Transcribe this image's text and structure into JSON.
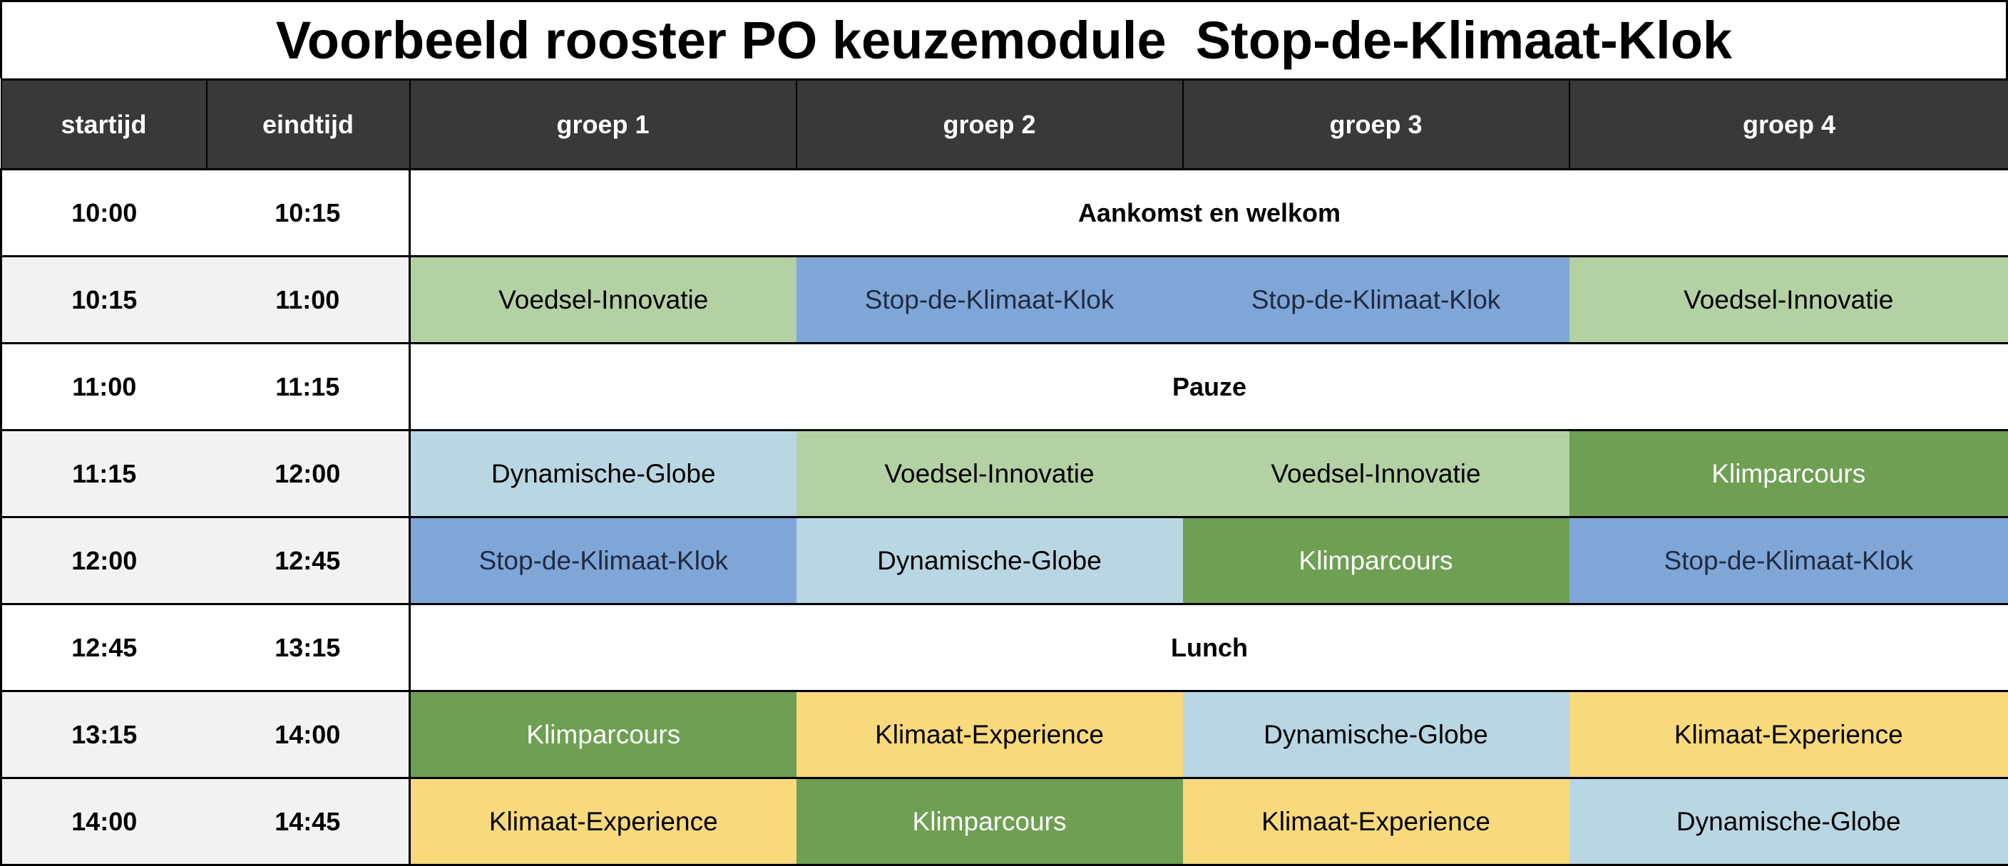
{
  "title": "Voorbeeld rooster PO keuzemodule  Stop-de-Klimaat-Klok",
  "headers": [
    "startijd",
    "eindtijd",
    "groep 1",
    "groep 2",
    "groep 3",
    "groep 4"
  ],
  "activity_colors": {
    "Voedsel-Innovatie": {
      "bg": "#b3d1a3",
      "fg": "#000000"
    },
    "Stop-de-Klimaat-Klok": {
      "bg": "#7fa6d6",
      "fg": "#1f2b44"
    },
    "Dynamische-Globe": {
      "bg": "#b9d6e3",
      "fg": "#000000"
    },
    "Klimparcours": {
      "bg": "#6e9f52",
      "fg": "#ffffff"
    },
    "Klimaat-Experience": {
      "bg": "#f8d97c",
      "fg": "#000000"
    }
  },
  "rows": [
    {
      "start": "10:00",
      "end": "10:15",
      "merged": "Aankomst en welkom",
      "shade": false
    },
    {
      "start": "10:15",
      "end": "11:00",
      "cells": [
        "Voedsel-Innovatie",
        "Stop-de-Klimaat-Klok",
        "Stop-de-Klimaat-Klok",
        "Voedsel-Innovatie"
      ],
      "shade": true
    },
    {
      "start": "11:00",
      "end": "11:15",
      "merged": "Pauze",
      "shade": false
    },
    {
      "start": "11:15",
      "end": "12:00",
      "cells": [
        "Dynamische-Globe",
        "Voedsel-Innovatie",
        "Voedsel-Innovatie",
        "Klimparcours"
      ],
      "shade": true
    },
    {
      "start": "12:00",
      "end": "12:45",
      "cells": [
        "Stop-de-Klimaat-Klok",
        "Dynamische-Globe",
        "Klimparcours",
        "Stop-de-Klimaat-Klok"
      ],
      "shade": true
    },
    {
      "start": "12:45",
      "end": "13:15",
      "merged": "Lunch",
      "shade": false
    },
    {
      "start": "13:15",
      "end": "14:00",
      "cells": [
        "Klimparcours",
        "Klimaat-Experience",
        "Dynamische-Globe",
        "Klimaat-Experience"
      ],
      "shade": true
    },
    {
      "start": "14:00",
      "end": "14:45",
      "cells": [
        "Klimaat-Experience",
        "Klimparcours",
        "Klimaat-Experience",
        "Dynamische-Globe"
      ],
      "shade": true
    }
  ]
}
